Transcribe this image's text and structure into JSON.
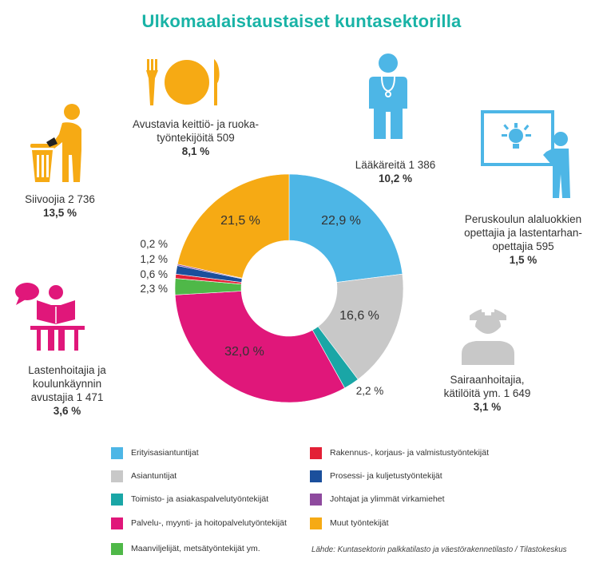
{
  "title": "Ulkomaalaistaustaiset kuntasektorilla",
  "source": "Lähde: Kuntasektorin palkkatilasto ja väestörakennetilasto / Tilastokeskus",
  "colors": {
    "accent": "#19b3a6",
    "blue": "#4db6e6",
    "grey": "#c8c8c8",
    "teal": "#1aa6a6",
    "magenta": "#e0177a",
    "green": "#4fb848",
    "red": "#e32036",
    "navy": "#1b4f9c",
    "purple": "#8e4a9e",
    "orange": "#f6aa14"
  },
  "callouts": {
    "siivoojia": {
      "label": "Siivoojia 2 736",
      "pct": "13,5 %",
      "icon": "cleaner-icon"
    },
    "avustavia": {
      "line1": "Avustavia keittiö- ja ruoka-",
      "line2": "työntekijöitä 509",
      "pct": "8,1 %",
      "icon": "plate-cutlery-icon"
    },
    "laakareita": {
      "label": "Lääkäreitä 1 386",
      "pct": "10,2 %",
      "icon": "doctor-icon"
    },
    "peruskoulun": {
      "line1": "Peruskoulun alaluokkien",
      "line2": "opettajia ja lastentarhan-",
      "line3": "opettajia 595",
      "pct": "1,5 %",
      "icon": "teacher-icon"
    },
    "lastenhoitajia": {
      "line1": "Lastenhoitajia ja",
      "line2": "koulunkäynnin",
      "line3": "avustajia 1 471",
      "pct": "3,6 %",
      "icon": "reading-child-icon"
    },
    "sairaanhoitajia": {
      "line1": "Sairaanhoitajia,",
      "line2": "kätilöitä ym. 1 649",
      "pct": "3,1 %",
      "icon": "nurse-icon"
    }
  },
  "chart_data": {
    "type": "pie",
    "style": "donut",
    "categories": [
      "Erityisasiantuntijat",
      "Asiantuntijat",
      "Toimisto- ja asiakaspalvelutyöntekijät",
      "Palvelu-, myynti- ja hoitopalvelutyöntekijät",
      "Maanviljelijät, metsätyöntekijät ym.",
      "Rakennus-, korjaus- ja valmistustyöntekijät",
      "Prosessi- ja kuljetustyöntekijät",
      "Johtajat ja ylimmät virkamiehet",
      "Muut työntekijät"
    ],
    "values": [
      22.9,
      16.6,
      2.2,
      32.0,
      2.3,
      0.6,
      1.2,
      0.2,
      21.5
    ],
    "labels": [
      "22,9 %",
      "16,6 %",
      "2,2 %",
      "32,0 %",
      "2,3 %",
      "0,6 %",
      "1,2 %",
      "0,2 %",
      "21,5 %"
    ],
    "colors": [
      "#4db6e6",
      "#c8c8c8",
      "#1aa6a6",
      "#e0177a",
      "#4fb848",
      "#e32036",
      "#1b4f9c",
      "#8e4a9e",
      "#f6aa14"
    ],
    "unit": "%",
    "legend": "bottom"
  }
}
